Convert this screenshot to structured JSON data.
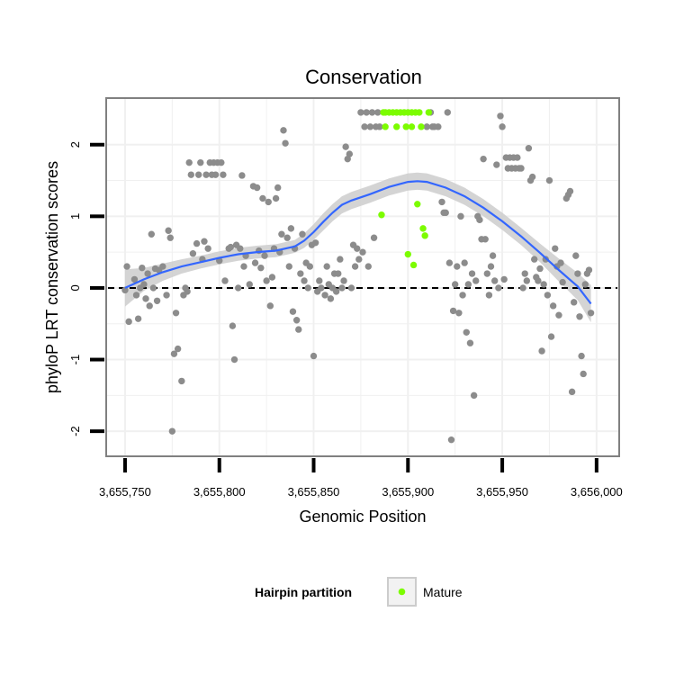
{
  "chart_data": {
    "type": "scatter",
    "title": "Conservation",
    "xlabel": "Genomic Position",
    "ylabel": "phyloP LRT conservation scores",
    "xlim": [
      3655740,
      3656012
    ],
    "ylim": [
      -2.35,
      2.65
    ],
    "x_ticks": [
      3655750,
      3655800,
      3655850,
      3655900,
      3655950,
      3656000
    ],
    "x_tick_labels": [
      "3,655,750",
      "3,655,800",
      "3,655,850",
      "3,655,900",
      "3,655,950",
      "3,656,000"
    ],
    "y_ticks": [
      -2,
      -1,
      0,
      1,
      2
    ],
    "y_tick_labels": [
      "-2",
      "-1",
      "0",
      "1",
      "2"
    ],
    "reference_line": {
      "y": 0,
      "style": "dashed"
    },
    "grid": true,
    "legend": {
      "title": "Hairpin partition",
      "entries": [
        {
          "label": "Mature",
          "color": "#7cfc00"
        }
      ],
      "placement": "bottom"
    },
    "colors": {
      "points": "#8c8c8c",
      "mature": "#7cfc00",
      "smooth_line": "#3366ff",
      "smooth_band": "#cccccc",
      "panel_border": "#808080",
      "grid": "#f0f0f0"
    },
    "series": [
      {
        "name": "Mature",
        "points": [
          [
            3655887,
            2.45
          ],
          [
            3655888,
            2.45
          ],
          [
            3655890,
            2.45
          ],
          [
            3655892,
            2.45
          ],
          [
            3655894,
            2.45
          ],
          [
            3655896,
            2.45
          ],
          [
            3655898,
            2.45
          ],
          [
            3655900,
            2.45
          ],
          [
            3655902,
            2.45
          ],
          [
            3655904,
            2.45
          ],
          [
            3655906,
            2.45
          ],
          [
            3655911,
            2.45
          ],
          [
            3655888,
            2.25
          ],
          [
            3655894,
            2.25
          ],
          [
            3655899,
            2.25
          ],
          [
            3655902,
            2.25
          ],
          [
            3655907,
            2.25
          ],
          [
            3655886,
            1.02
          ],
          [
            3655905,
            1.17
          ],
          [
            3655908,
            0.83
          ],
          [
            3655909,
            0.73
          ],
          [
            3655900,
            0.47
          ],
          [
            3655903,
            0.32
          ]
        ]
      },
      {
        "name": "",
        "points": [
          [
            3655750,
            -0.03
          ],
          [
            3655751,
            0.3
          ],
          [
            3655752,
            -0.47
          ],
          [
            3655755,
            0.12
          ],
          [
            3655756,
            -0.1
          ],
          [
            3655757,
            -0.43
          ],
          [
            3655758,
            0.0
          ],
          [
            3655759,
            0.28
          ],
          [
            3655760,
            0.05
          ],
          [
            3655761,
            -0.15
          ],
          [
            3655762,
            0.2
          ],
          [
            3655763,
            -0.25
          ],
          [
            3655764,
            0.75
          ],
          [
            3655765,
            0.0
          ],
          [
            3655766,
            0.27
          ],
          [
            3655767,
            -0.18
          ],
          [
            3655768,
            0.25
          ],
          [
            3655770,
            0.3
          ],
          [
            3655772,
            -0.1
          ],
          [
            3655773,
            0.8
          ],
          [
            3655774,
            0.7
          ],
          [
            3655775,
            -2.0
          ],
          [
            3655776,
            -0.92
          ],
          [
            3655777,
            -0.35
          ],
          [
            3655778,
            -0.85
          ],
          [
            3655780,
            -1.3
          ],
          [
            3655781,
            -0.1
          ],
          [
            3655782,
            0.0
          ],
          [
            3655783,
            -0.05
          ],
          [
            3655784,
            1.75
          ],
          [
            3655785,
            1.58
          ],
          [
            3655786,
            0.48
          ],
          [
            3655788,
            0.62
          ],
          [
            3655789,
            1.58
          ],
          [
            3655790,
            1.75
          ],
          [
            3655791,
            0.4
          ],
          [
            3655792,
            0.65
          ],
          [
            3655793,
            1.58
          ],
          [
            3655794,
            0.55
          ],
          [
            3655795,
            1.75
          ],
          [
            3655796,
            1.58
          ],
          [
            3655797,
            1.75
          ],
          [
            3655798,
            1.58
          ],
          [
            3655799,
            1.75
          ],
          [
            3655800,
            0.38
          ],
          [
            3655801,
            1.75
          ],
          [
            3655802,
            1.58
          ],
          [
            3655803,
            0.1
          ],
          [
            3655805,
            0.55
          ],
          [
            3655806,
            0.57
          ],
          [
            3655807,
            -0.53
          ],
          [
            3655808,
            -1.0
          ],
          [
            3655809,
            0.6
          ],
          [
            3655810,
            0.0
          ],
          [
            3655811,
            0.55
          ],
          [
            3655812,
            1.57
          ],
          [
            3655813,
            0.3
          ],
          [
            3655814,
            0.45
          ],
          [
            3655816,
            0.05
          ],
          [
            3655818,
            1.42
          ],
          [
            3655819,
            0.35
          ],
          [
            3655820,
            1.4
          ],
          [
            3655821,
            0.52
          ],
          [
            3655822,
            0.28
          ],
          [
            3655823,
            1.25
          ],
          [
            3655824,
            0.45
          ],
          [
            3655825,
            0.1
          ],
          [
            3655826,
            1.2
          ],
          [
            3655827,
            -0.25
          ],
          [
            3655828,
            0.15
          ],
          [
            3655829,
            0.55
          ],
          [
            3655830,
            1.25
          ],
          [
            3655831,
            1.4
          ],
          [
            3655832,
            0.5
          ],
          [
            3655833,
            0.75
          ],
          [
            3655834,
            2.2
          ],
          [
            3655835,
            2.02
          ],
          [
            3655836,
            0.7
          ],
          [
            3655837,
            0.3
          ],
          [
            3655838,
            0.83
          ],
          [
            3655839,
            -0.33
          ],
          [
            3655840,
            0.55
          ],
          [
            3655841,
            -0.45
          ],
          [
            3655842,
            -0.58
          ],
          [
            3655843,
            0.2
          ],
          [
            3655844,
            0.75
          ],
          [
            3655845,
            0.1
          ],
          [
            3655846,
            0.35
          ],
          [
            3655847,
            0.0
          ],
          [
            3655848,
            0.3
          ],
          [
            3655849,
            0.6
          ],
          [
            3655850,
            -0.95
          ],
          [
            3655851,
            0.63
          ],
          [
            3655852,
            -0.05
          ],
          [
            3655853,
            0.1
          ],
          [
            3655854,
            0.0
          ],
          [
            3655856,
            -0.1
          ],
          [
            3655857,
            0.3
          ],
          [
            3655858,
            0.05
          ],
          [
            3655859,
            -0.15
          ],
          [
            3655860,
            0.0
          ],
          [
            3655861,
            0.2
          ],
          [
            3655862,
            -0.05
          ],
          [
            3655863,
            0.2
          ],
          [
            3655864,
            0.4
          ],
          [
            3655865,
            0.0
          ],
          [
            3655866,
            0.1
          ],
          [
            3655867,
            1.97
          ],
          [
            3655868,
            1.8
          ],
          [
            3655869,
            1.87
          ],
          [
            3655870,
            0.0
          ],
          [
            3655871,
            0.6
          ],
          [
            3655872,
            0.3
          ],
          [
            3655873,
            0.55
          ],
          [
            3655874,
            0.4
          ],
          [
            3655875,
            2.45
          ],
          [
            3655876,
            0.5
          ],
          [
            3655877,
            2.25
          ],
          [
            3655878,
            2.45
          ],
          [
            3655879,
            0.3
          ],
          [
            3655880,
            2.25
          ],
          [
            3655881,
            2.45
          ],
          [
            3655882,
            0.7
          ],
          [
            3655883,
            2.25
          ],
          [
            3655884,
            2.45
          ],
          [
            3655885,
            2.25
          ],
          [
            3655910,
            2.25
          ],
          [
            3655912,
            2.45
          ],
          [
            3655913,
            2.25
          ],
          [
            3655914,
            2.25
          ],
          [
            3655916,
            2.25
          ],
          [
            3655918,
            1.2
          ],
          [
            3655919,
            1.05
          ],
          [
            3655920,
            1.05
          ],
          [
            3655921,
            2.45
          ],
          [
            3655922,
            0.35
          ],
          [
            3655923,
            -2.12
          ],
          [
            3655924,
            -0.32
          ],
          [
            3655925,
            0.05
          ],
          [
            3655926,
            0.3
          ],
          [
            3655927,
            -0.35
          ],
          [
            3655928,
            1.0
          ],
          [
            3655929,
            -0.1
          ],
          [
            3655930,
            0.35
          ],
          [
            3655931,
            -0.62
          ],
          [
            3655932,
            0.05
          ],
          [
            3655933,
            -0.77
          ],
          [
            3655934,
            0.2
          ],
          [
            3655935,
            -1.5
          ],
          [
            3655936,
            0.1
          ],
          [
            3655937,
            1.0
          ],
          [
            3655938,
            0.95
          ],
          [
            3655939,
            0.68
          ],
          [
            3655940,
            1.8
          ],
          [
            3655941,
            0.68
          ],
          [
            3655942,
            0.2
          ],
          [
            3655943,
            -0.1
          ],
          [
            3655944,
            0.3
          ],
          [
            3655945,
            0.45
          ],
          [
            3655946,
            0.1
          ],
          [
            3655947,
            1.72
          ],
          [
            3655948,
            0.0
          ],
          [
            3655949,
            2.4
          ],
          [
            3655950,
            2.25
          ],
          [
            3655951,
            0.12
          ],
          [
            3655952,
            1.82
          ],
          [
            3655953,
            1.67
          ],
          [
            3655954,
            1.82
          ],
          [
            3655955,
            1.67
          ],
          [
            3655956,
            1.82
          ],
          [
            3655957,
            1.67
          ],
          [
            3655958,
            1.82
          ],
          [
            3655959,
            1.67
          ],
          [
            3655960,
            1.67
          ],
          [
            3655961,
            0.0
          ],
          [
            3655962,
            0.2
          ],
          [
            3655963,
            0.1
          ],
          [
            3655964,
            1.95
          ],
          [
            3655965,
            1.5
          ],
          [
            3655966,
            1.55
          ],
          [
            3655967,
            0.4
          ],
          [
            3655968,
            0.15
          ],
          [
            3655969,
            0.1
          ],
          [
            3655970,
            0.27
          ],
          [
            3655971,
            -0.88
          ],
          [
            3655972,
            0.05
          ],
          [
            3655973,
            0.4
          ],
          [
            3655974,
            -0.1
          ],
          [
            3655975,
            1.5
          ],
          [
            3655976,
            -0.68
          ],
          [
            3655977,
            -0.25
          ],
          [
            3655978,
            0.55
          ],
          [
            3655979,
            0.3
          ],
          [
            3655980,
            -0.38
          ],
          [
            3655981,
            0.35
          ],
          [
            3655982,
            0.08
          ],
          [
            3655984,
            1.25
          ],
          [
            3655985,
            1.3
          ],
          [
            3655986,
            1.35
          ],
          [
            3655987,
            -1.45
          ],
          [
            3655988,
            -0.2
          ],
          [
            3655989,
            0.45
          ],
          [
            3655990,
            0.2
          ],
          [
            3655991,
            -0.4
          ],
          [
            3655992,
            -0.95
          ],
          [
            3655993,
            -1.2
          ],
          [
            3655994,
            0.05
          ],
          [
            3655995,
            0.2
          ],
          [
            3655996,
            0.25
          ],
          [
            3655997,
            -0.35
          ]
        ]
      }
    ],
    "smooth": {
      "x": [
        3655750,
        3655760,
        3655770,
        3655780,
        3655790,
        3655800,
        3655810,
        3655820,
        3655830,
        3655840,
        3655845,
        3655850,
        3655855,
        3655860,
        3655865,
        3655870,
        3655880,
        3655890,
        3655900,
        3655905,
        3655910,
        3655920,
        3655930,
        3655940,
        3655950,
        3655960,
        3655970,
        3655980,
        3655990,
        3655997
      ],
      "y": [
        0.0,
        0.12,
        0.22,
        0.3,
        0.36,
        0.42,
        0.47,
        0.5,
        0.52,
        0.58,
        0.66,
        0.78,
        0.92,
        1.05,
        1.16,
        1.22,
        1.31,
        1.41,
        1.48,
        1.49,
        1.48,
        1.4,
        1.28,
        1.12,
        0.93,
        0.72,
        0.49,
        0.25,
        0.02,
        -0.22
      ],
      "lower": [
        -0.26,
        -0.04,
        0.1,
        0.2,
        0.27,
        0.33,
        0.38,
        0.41,
        0.43,
        0.49,
        0.56,
        0.67,
        0.8,
        0.93,
        1.04,
        1.1,
        1.19,
        1.29,
        1.36,
        1.37,
        1.36,
        1.28,
        1.16,
        1.0,
        0.81,
        0.6,
        0.36,
        0.09,
        -0.17,
        -0.48
      ],
      "upper": [
        0.26,
        0.28,
        0.34,
        0.4,
        0.45,
        0.51,
        0.56,
        0.59,
        0.61,
        0.67,
        0.76,
        0.89,
        1.04,
        1.17,
        1.28,
        1.34,
        1.43,
        1.53,
        1.6,
        1.61,
        1.6,
        1.52,
        1.4,
        1.24,
        1.05,
        0.84,
        0.62,
        0.41,
        0.21,
        0.04
      ]
    }
  }
}
